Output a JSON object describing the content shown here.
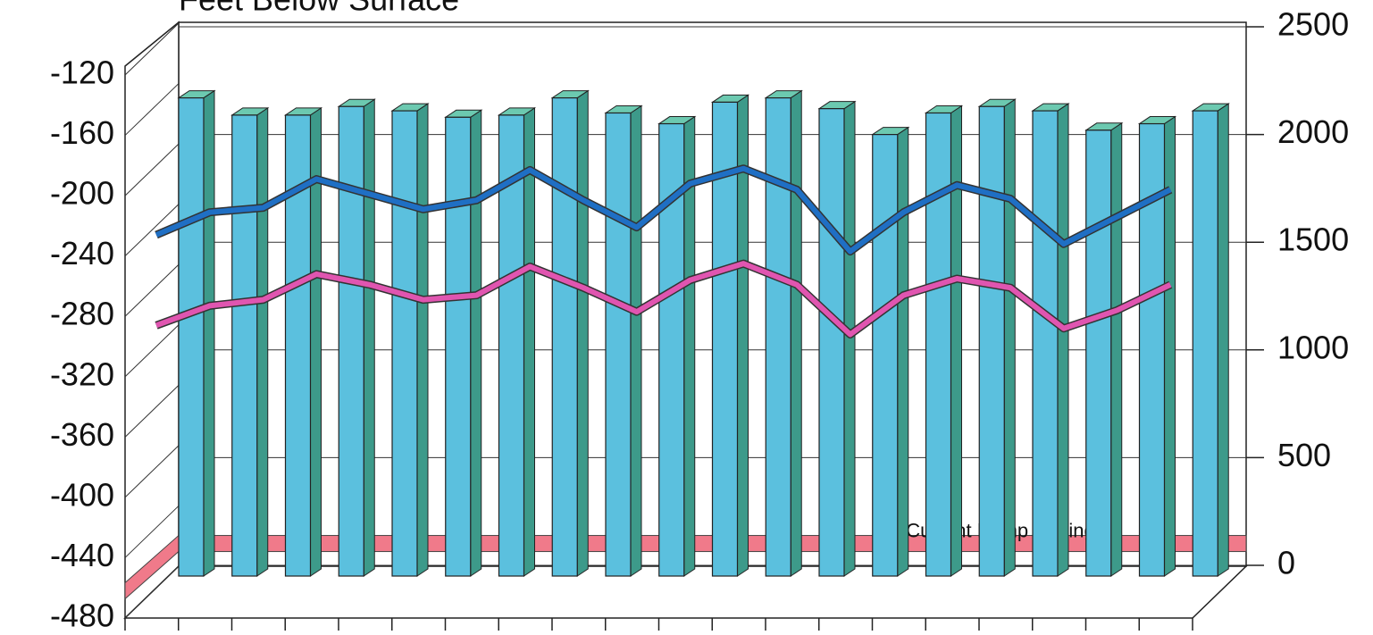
{
  "chart_data": {
    "type": "bar-line-3d",
    "title": "Feet Below Surface",
    "categories": [
      null,
      null,
      null,
      null,
      null,
      null,
      null,
      null,
      null,
      null,
      null,
      null,
      null,
      null,
      null,
      null,
      null,
      null,
      null,
      null
    ],
    "series": [
      {
        "type": "bar",
        "axis": "y2",
        "color": "#5bc0de",
        "values": [
          2170,
          2090,
          2090,
          2130,
          2110,
          2080,
          2090,
          2170,
          2100,
          2050,
          2150,
          2170,
          2120,
          2000,
          2100,
          2130,
          2110,
          2020,
          2050,
          2110
        ]
      },
      {
        "type": "line",
        "color": "#1f6fc4",
        "values": [
          -226,
          -211,
          -208,
          -189,
          -199,
          -209,
          -203,
          -183,
          -203,
          -221,
          -192,
          -182,
          -196,
          -237,
          -211,
          -193,
          -202,
          -232,
          -214,
          -196
        ]
      },
      {
        "type": "line",
        "color": "#e055b0",
        "values": [
          -286,
          -273,
          -269,
          -252,
          -259,
          -269,
          -266,
          -247,
          -261,
          -277,
          -256,
          -245,
          -259,
          -292,
          -266,
          -255,
          -261,
          -288,
          -276,
          -259
        ]
      }
    ],
    "pump_setting": {
      "label": "Current Pump Setting",
      "value": -430,
      "color": "#f07a8a"
    },
    "ylim": [
      -480,
      -120
    ],
    "yticks": [
      -480,
      -440,
      -400,
      -360,
      -320,
      -280,
      -240,
      -200,
      -160,
      -120
    ],
    "y2lim": [
      0,
      2500
    ],
    "y2ticks": [
      0,
      500,
      1000,
      1500,
      2000,
      2500
    ],
    "grid": true
  }
}
